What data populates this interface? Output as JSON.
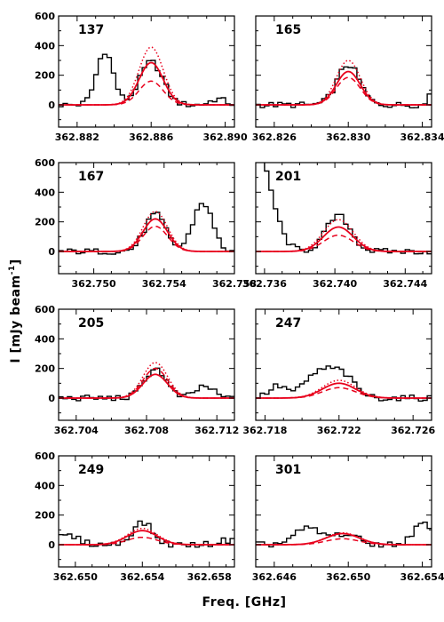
{
  "figure": {
    "ylabel": "I  [mJy beam",
    "ylabel_sup": "-1",
    "ylabel_close": "]",
    "xlabel": "Freq.  [GHz]"
  },
  "colors": {
    "data": "#000000",
    "fit": "#e8001c"
  },
  "chart_data": [
    {
      "type": "line",
      "label": "137",
      "xlim": [
        362.881,
        362.8905
      ],
      "ylim": [
        -150,
        600
      ],
      "yticks": [
        0,
        200,
        400,
        600
      ],
      "xticks": [
        362.882,
        362.886,
        362.89
      ],
      "xtick_labels": [
        "362.882",
        "362.886",
        "362.890"
      ],
      "peaks": [
        {
          "x": 362.886,
          "amp": 290,
          "sigma": 0.00062
        },
        {
          "x": 362.8835,
          "amp": 360,
          "sigma": 0.00045
        },
        {
          "x": 362.8896,
          "amp": 40,
          "sigma": 0.0004
        }
      ],
      "fit": {
        "center": 362.886,
        "sigma": 0.00065,
        "solid": 285,
        "dotted": 390,
        "dashed": 160
      }
    },
    {
      "type": "line",
      "label": "165",
      "xlim": [
        362.825,
        362.8345
      ],
      "ylim": [
        -150,
        600
      ],
      "yticks": [
        0,
        200,
        400,
        600
      ],
      "xticks": [
        362.826,
        362.83,
        362.834
      ],
      "xtick_labels": [
        "362.826",
        "362.830",
        "362.834"
      ],
      "peaks": [
        {
          "x": 362.83,
          "amp": 270,
          "sigma": 0.0006
        },
        {
          "x": 362.8347,
          "amp": 280,
          "sigma": 0.0002
        }
      ],
      "fit": {
        "center": 362.83,
        "sigma": 0.00065,
        "solid": 225,
        "dotted": 300,
        "dashed": 185
      }
    },
    {
      "type": "line",
      "label": "167",
      "xlim": [
        362.748,
        362.758
      ],
      "ylim": [
        -150,
        600
      ],
      "yticks": [
        0,
        200,
        400,
        600
      ],
      "xticks": [
        362.75,
        362.754,
        362.758
      ],
      "xtick_labels": [
        "362.750",
        "362.754",
        "362.758"
      ],
      "peaks": [
        {
          "x": 362.7535,
          "amp": 250,
          "sigma": 0.0006
        },
        {
          "x": 362.7562,
          "amp": 330,
          "sigma": 0.00055
        }
      ],
      "fit": {
        "center": 362.7535,
        "sigma": 0.0007,
        "solid": 220,
        "dotted": 270,
        "dashed": 170
      }
    },
    {
      "type": "line",
      "label": "201",
      "xlim": [
        362.7355,
        362.7455
      ],
      "ylim": [
        -150,
        600
      ],
      "yticks": [
        0,
        200,
        400,
        600
      ],
      "xticks": [
        362.736,
        362.74,
        362.744
      ],
      "xtick_labels": [
        "362.736",
        "362.740",
        "362.744"
      ],
      "peaks": [
        {
          "x": 362.7355,
          "amp": 700,
          "sigma": 0.00085
        },
        {
          "x": 362.7402,
          "amp": 240,
          "sigma": 0.0007
        }
      ],
      "fit": {
        "center": 362.7402,
        "sigma": 0.00085,
        "solid": 165,
        "dotted": 215,
        "dashed": 110
      }
    },
    {
      "type": "line",
      "label": "205",
      "xlim": [
        362.703,
        362.713
      ],
      "ylim": [
        -150,
        600
      ],
      "yticks": [
        0,
        200,
        400,
        600
      ],
      "xticks": [
        362.704,
        362.708,
        362.712
      ],
      "xtick_labels": [
        "362.704",
        "362.708",
        "362.712"
      ],
      "peaks": [
        {
          "x": 362.7085,
          "amp": 200,
          "sigma": 0.0006
        },
        {
          "x": 362.7113,
          "amp": 80,
          "sigma": 0.0005
        }
      ],
      "fit": {
        "center": 362.7085,
        "sigma": 0.0007,
        "solid": 160,
        "dotted": 240,
        "dashed": 200
      }
    },
    {
      "type": "line",
      "label": "247",
      "xlim": [
        362.7175,
        362.727
      ],
      "ylim": [
        -150,
        600
      ],
      "yticks": [
        0,
        200,
        400,
        600
      ],
      "xticks": [
        362.718,
        362.722,
        362.726
      ],
      "xtick_labels": [
        "362.718",
        "362.722",
        "362.726"
      ],
      "peaks": [
        {
          "x": 362.7221,
          "amp": 160,
          "sigma": 0.0007
        },
        {
          "x": 362.7208,
          "amp": 150,
          "sigma": 0.0007
        },
        {
          "x": 362.7187,
          "amp": 80,
          "sigma": 0.0005
        }
      ],
      "fit": {
        "center": 362.722,
        "sigma": 0.0009,
        "solid": 100,
        "dotted": 120,
        "dashed": 70
      }
    },
    {
      "type": "line",
      "label": "249",
      "xlim": [
        362.649,
        362.6595
      ],
      "ylim": [
        -150,
        600
      ],
      "yticks": [
        0,
        200,
        400,
        600
      ],
      "xticks": [
        362.65,
        362.654,
        362.658
      ],
      "xtick_labels": [
        "362.650",
        "362.654",
        "362.658"
      ],
      "peaks": [
        {
          "x": 362.654,
          "amp": 150,
          "sigma": 0.0006
        },
        {
          "x": 362.6495,
          "amp": 60,
          "sigma": 0.0007
        },
        {
          "x": 362.659,
          "amp": 30,
          "sigma": 0.0005
        }
      ],
      "fit": {
        "center": 362.654,
        "sigma": 0.0009,
        "solid": 95,
        "dotted": 110,
        "dashed": 50
      }
    },
    {
      "type": "line",
      "label": "301",
      "xlim": [
        362.645,
        362.6545
      ],
      "ylim": [
        -150,
        600
      ],
      "yticks": [
        0,
        200,
        400,
        600
      ],
      "xticks": [
        362.646,
        362.65,
        362.654
      ],
      "xtick_labels": [
        "362.646",
        "362.650",
        "362.654"
      ],
      "peaks": [
        {
          "x": 362.6478,
          "amp": 110,
          "sigma": 0.0007
        },
        {
          "x": 362.6498,
          "amp": 70,
          "sigma": 0.0007
        },
        {
          "x": 362.654,
          "amp": 140,
          "sigma": 0.0005
        }
      ],
      "fit": {
        "center": 362.6497,
        "sigma": 0.0009,
        "solid": 75,
        "dotted": 80,
        "dashed": 40
      }
    }
  ]
}
